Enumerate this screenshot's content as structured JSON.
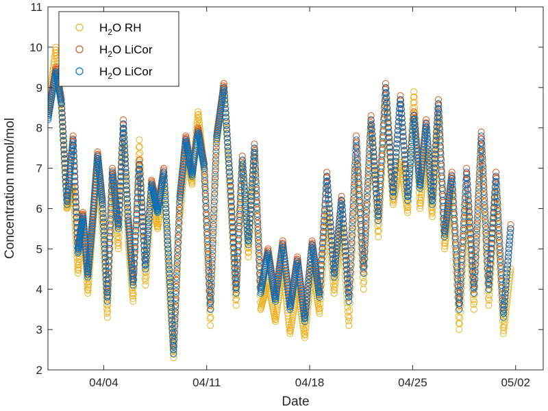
{
  "chart_data": {
    "type": "scatter",
    "xlabel": "Date",
    "ylabel": "Concentration mmol/mol",
    "x_ticks": [
      "04/04",
      "04/11",
      "04/18",
      "04/25",
      "05/02"
    ],
    "xlim": [
      "03/31 05:00",
      "05/03 21:00"
    ],
    "ylim": [
      2,
      11
    ],
    "y_ticks": [
      2,
      3,
      4,
      5,
      6,
      7,
      8,
      9,
      10,
      11
    ],
    "grid": false,
    "legend_position": "top-left",
    "marker": "open-circle",
    "series": [
      {
        "name": "H2O RH",
        "legend_main": "H",
        "legend_sub": "2",
        "legend_rest": "O RH",
        "color": "#EDB120",
        "points": [
          [
            "03/31 05:00",
            8.4
          ],
          [
            "03/31 18:00",
            10.0
          ],
          [
            "04/01 03:00",
            8.5
          ],
          [
            "04/01 12:00",
            6.0
          ],
          [
            "04/01 22:00",
            6.5
          ],
          [
            "04/02 06:00",
            4.4
          ],
          [
            "04/02 14:00",
            5.9
          ],
          [
            "04/02 22:00",
            3.9
          ],
          [
            "04/03 06:00",
            5.5
          ],
          [
            "04/03 14:00",
            7.1
          ],
          [
            "04/03 22:00",
            5.6
          ],
          [
            "04/04 06:00",
            3.3
          ],
          [
            "04/04 14:00",
            6.7
          ],
          [
            "04/05 00:00",
            5.0
          ],
          [
            "04/05 08:00",
            8.0
          ],
          [
            "04/05 16:00",
            5.2
          ],
          [
            "04/06 00:00",
            3.7
          ],
          [
            "04/06 10:00",
            7.7
          ],
          [
            "04/06 20:00",
            4.1
          ],
          [
            "04/07 06:00",
            6.4
          ],
          [
            "04/07 16:00",
            5.5
          ],
          [
            "04/08 02:00",
            6.8
          ],
          [
            "04/08 10:00",
            4.3
          ],
          [
            "04/08 18:00",
            2.3
          ],
          [
            "04/09 04:00",
            5.8
          ],
          [
            "04/09 14:00",
            7.5
          ],
          [
            "04/10 00:00",
            6.6
          ],
          [
            "04/10 10:00",
            8.4
          ],
          [
            "04/10 20:00",
            6.9
          ],
          [
            "04/11 06:00",
            3.1
          ],
          [
            "04/11 16:00",
            7.6
          ],
          [
            "04/12 04:00",
            9.1
          ],
          [
            "04/12 14:00",
            6.4
          ],
          [
            "04/13 00:00",
            3.6
          ],
          [
            "04/13 10:00",
            7.2
          ],
          [
            "04/13 20:00",
            4.8
          ],
          [
            "04/14 06:00",
            7.4
          ],
          [
            "04/14 16:00",
            3.5
          ],
          [
            "04/15 04:00",
            4.2
          ],
          [
            "04/15 16:00",
            3.2
          ],
          [
            "04/16 04:00",
            4.5
          ],
          [
            "04/16 16:00",
            2.9
          ],
          [
            "04/17 04:00",
            4.1
          ],
          [
            "04/17 16:00",
            2.8
          ],
          [
            "04/18 04:00",
            4.6
          ],
          [
            "04/18 16:00",
            3.4
          ],
          [
            "04/19 04:00",
            6.0
          ],
          [
            "04/19 16:00",
            3.9
          ],
          [
            "04/20 04:00",
            5.6
          ],
          [
            "04/20 16:00",
            3.1
          ],
          [
            "04/21 04:00",
            7.2
          ],
          [
            "04/21 16:00",
            4.0
          ],
          [
            "04/22 04:00",
            8.2
          ],
          [
            "04/22 16:00",
            5.3
          ],
          [
            "04/23 04:00",
            8.7
          ],
          [
            "04/23 16:00",
            6.1
          ],
          [
            "04/24 04:00",
            7.2
          ],
          [
            "04/24 16:00",
            5.9
          ],
          [
            "04/25 02:00",
            8.9
          ],
          [
            "04/25 12:00",
            6.0
          ],
          [
            "04/25 22:00",
            7.5
          ],
          [
            "04/26 08:00",
            5.8
          ],
          [
            "04/26 18:00",
            8.3
          ],
          [
            "04/27 04:00",
            5.0
          ],
          [
            "04/27 16:00",
            6.5
          ],
          [
            "04/28 04:00",
            3.0
          ],
          [
            "04/28 16:00",
            6.2
          ],
          [
            "04/29 04:00",
            3.5
          ],
          [
            "04/29 16:00",
            7.6
          ],
          [
            "04/30 04:00",
            3.6
          ],
          [
            "04/30 16:00",
            6.4
          ],
          [
            "05/01 04:00",
            2.9
          ],
          [
            "05/01 16:00",
            4.5
          ]
        ]
      },
      {
        "name": "H2O LiCor",
        "legend_main": "H",
        "legend_sub": "2",
        "legend_rest": "O LiCor",
        "color": "#D95319",
        "points": [
          [
            "03/31 05:00",
            8.3
          ],
          [
            "03/31 18:00",
            9.5
          ],
          [
            "04/01 03:00",
            8.7
          ],
          [
            "04/01 12:00",
            6.2
          ],
          [
            "04/01 22:00",
            7.8
          ],
          [
            "04/02 06:00",
            5.0
          ],
          [
            "04/02 14:00",
            5.9
          ],
          [
            "04/02 22:00",
            4.4
          ],
          [
            "04/03 06:00",
            5.8
          ],
          [
            "04/03 14:00",
            7.4
          ],
          [
            "04/03 22:00",
            6.2
          ],
          [
            "04/04 06:00",
            3.8
          ],
          [
            "04/04 14:00",
            7.0
          ],
          [
            "04/05 00:00",
            5.6
          ],
          [
            "04/05 08:00",
            8.2
          ],
          [
            "04/05 16:00",
            5.8
          ],
          [
            "04/06 00:00",
            4.2
          ],
          [
            "04/06 10:00",
            7.2
          ],
          [
            "04/06 20:00",
            4.6
          ],
          [
            "04/07 06:00",
            6.7
          ],
          [
            "04/07 16:00",
            6.0
          ],
          [
            "04/08 02:00",
            7.0
          ],
          [
            "04/08 10:00",
            4.8
          ],
          [
            "04/08 18:00",
            2.5
          ],
          [
            "04/09 04:00",
            6.3
          ],
          [
            "04/09 14:00",
            7.8
          ],
          [
            "04/10 00:00",
            6.9
          ],
          [
            "04/10 10:00",
            8.0
          ],
          [
            "04/10 20:00",
            7.1
          ],
          [
            "04/11 06:00",
            3.6
          ],
          [
            "04/11 16:00",
            7.8
          ],
          [
            "04/12 04:00",
            9.1
          ],
          [
            "04/12 14:00",
            6.8
          ],
          [
            "04/13 00:00",
            4.0
          ],
          [
            "04/13 10:00",
            7.3
          ],
          [
            "04/13 20:00",
            5.2
          ],
          [
            "04/14 06:00",
            7.6
          ],
          [
            "04/14 16:00",
            4.0
          ],
          [
            "04/15 04:00",
            5.0
          ],
          [
            "04/15 16:00",
            3.8
          ],
          [
            "04/16 04:00",
            5.2
          ],
          [
            "04/16 16:00",
            3.6
          ],
          [
            "04/17 04:00",
            4.8
          ],
          [
            "04/17 16:00",
            3.3
          ],
          [
            "04/18 04:00",
            5.2
          ],
          [
            "04/18 16:00",
            3.9
          ],
          [
            "04/19 04:00",
            6.9
          ],
          [
            "04/19 16:00",
            4.4
          ],
          [
            "04/20 04:00",
            6.3
          ],
          [
            "04/20 16:00",
            3.8
          ],
          [
            "04/21 04:00",
            7.8
          ],
          [
            "04/21 16:00",
            4.5
          ],
          [
            "04/22 04:00",
            8.3
          ],
          [
            "04/22 16:00",
            5.8
          ],
          [
            "04/23 04:00",
            9.1
          ],
          [
            "04/23 16:00",
            6.4
          ],
          [
            "04/24 04:00",
            8.8
          ],
          [
            "04/24 16:00",
            6.3
          ],
          [
            "04/25 02:00",
            8.4
          ],
          [
            "04/25 12:00",
            6.6
          ],
          [
            "04/25 22:00",
            8.2
          ],
          [
            "04/26 08:00",
            6.2
          ],
          [
            "04/26 18:00",
            8.7
          ],
          [
            "04/27 04:00",
            5.4
          ],
          [
            "04/27 16:00",
            6.9
          ],
          [
            "04/28 04:00",
            3.6
          ],
          [
            "04/28 16:00",
            7.0
          ],
          [
            "04/29 04:00",
            4.0
          ],
          [
            "04/29 16:00",
            7.9
          ],
          [
            "04/30 04:00",
            4.1
          ],
          [
            "04/30 16:00",
            6.9
          ],
          [
            "05/01 04:00",
            3.4
          ],
          [
            "05/01 16:00",
            5.6
          ]
        ]
      },
      {
        "name": "H2O LiCor",
        "legend_main": "H",
        "legend_sub": "2",
        "legend_rest": "O LiCor",
        "color": "#0072BD",
        "points": [
          [
            "03/31 05:00",
            8.2
          ],
          [
            "03/31 18:00",
            9.4
          ],
          [
            "04/01 03:00",
            8.6
          ],
          [
            "04/01 12:00",
            6.1
          ],
          [
            "04/01 22:00",
            7.7
          ],
          [
            "04/02 06:00",
            4.9
          ],
          [
            "04/02 14:00",
            5.8
          ],
          [
            "04/02 22:00",
            4.3
          ],
          [
            "04/03 06:00",
            5.7
          ],
          [
            "04/03 14:00",
            7.3
          ],
          [
            "04/03 22:00",
            6.1
          ],
          [
            "04/04 06:00",
            3.7
          ],
          [
            "04/04 14:00",
            6.9
          ],
          [
            "04/05 00:00",
            5.5
          ],
          [
            "04/05 08:00",
            8.1
          ],
          [
            "04/05 16:00",
            5.7
          ],
          [
            "04/06 00:00",
            4.1
          ],
          [
            "04/06 10:00",
            7.1
          ],
          [
            "04/06 20:00",
            4.5
          ],
          [
            "04/07 06:00",
            6.6
          ],
          [
            "04/07 16:00",
            5.9
          ],
          [
            "04/08 02:00",
            6.9
          ],
          [
            "04/08 10:00",
            4.7
          ],
          [
            "04/08 18:00",
            2.4
          ],
          [
            "04/09 04:00",
            6.2
          ],
          [
            "04/09 14:00",
            7.7
          ],
          [
            "04/10 00:00",
            6.8
          ],
          [
            "04/10 10:00",
            7.9
          ],
          [
            "04/10 20:00",
            7.0
          ],
          [
            "04/11 06:00",
            3.5
          ],
          [
            "04/11 16:00",
            7.7
          ],
          [
            "04/12 04:00",
            9.0
          ],
          [
            "04/12 14:00",
            6.7
          ],
          [
            "04/13 00:00",
            3.9
          ],
          [
            "04/13 10:00",
            7.2
          ],
          [
            "04/13 20:00",
            5.1
          ],
          [
            "04/14 06:00",
            7.5
          ],
          [
            "04/14 16:00",
            3.9
          ],
          [
            "04/15 04:00",
            4.9
          ],
          [
            "04/15 16:00",
            3.7
          ],
          [
            "04/16 04:00",
            5.1
          ],
          [
            "04/16 16:00",
            3.5
          ],
          [
            "04/17 04:00",
            4.7
          ],
          [
            "04/17 16:00",
            3.2
          ],
          [
            "04/18 04:00",
            5.1
          ],
          [
            "04/18 16:00",
            3.8
          ],
          [
            "04/19 04:00",
            6.8
          ],
          [
            "04/19 16:00",
            4.3
          ],
          [
            "04/20 04:00",
            6.2
          ],
          [
            "04/20 16:00",
            3.7
          ],
          [
            "04/21 04:00",
            7.7
          ],
          [
            "04/21 16:00",
            4.4
          ],
          [
            "04/22 04:00",
            8.2
          ],
          [
            "04/22 16:00",
            5.7
          ],
          [
            "04/23 04:00",
            9.0
          ],
          [
            "04/23 16:00",
            6.3
          ],
          [
            "04/24 04:00",
            8.7
          ],
          [
            "04/24 16:00",
            6.2
          ],
          [
            "04/25 02:00",
            8.3
          ],
          [
            "04/25 12:00",
            6.5
          ],
          [
            "04/25 22:00",
            8.1
          ],
          [
            "04/26 08:00",
            6.1
          ],
          [
            "04/26 18:00",
            8.6
          ],
          [
            "04/27 04:00",
            5.3
          ],
          [
            "04/27 16:00",
            6.8
          ],
          [
            "04/28 04:00",
            3.5
          ],
          [
            "04/28 16:00",
            6.9
          ],
          [
            "04/29 04:00",
            3.9
          ],
          [
            "04/29 16:00",
            7.8
          ],
          [
            "04/30 04:00",
            4.0
          ],
          [
            "04/30 16:00",
            6.8
          ],
          [
            "05/01 04:00",
            3.3
          ],
          [
            "05/01 16:00",
            5.5
          ]
        ]
      }
    ]
  }
}
